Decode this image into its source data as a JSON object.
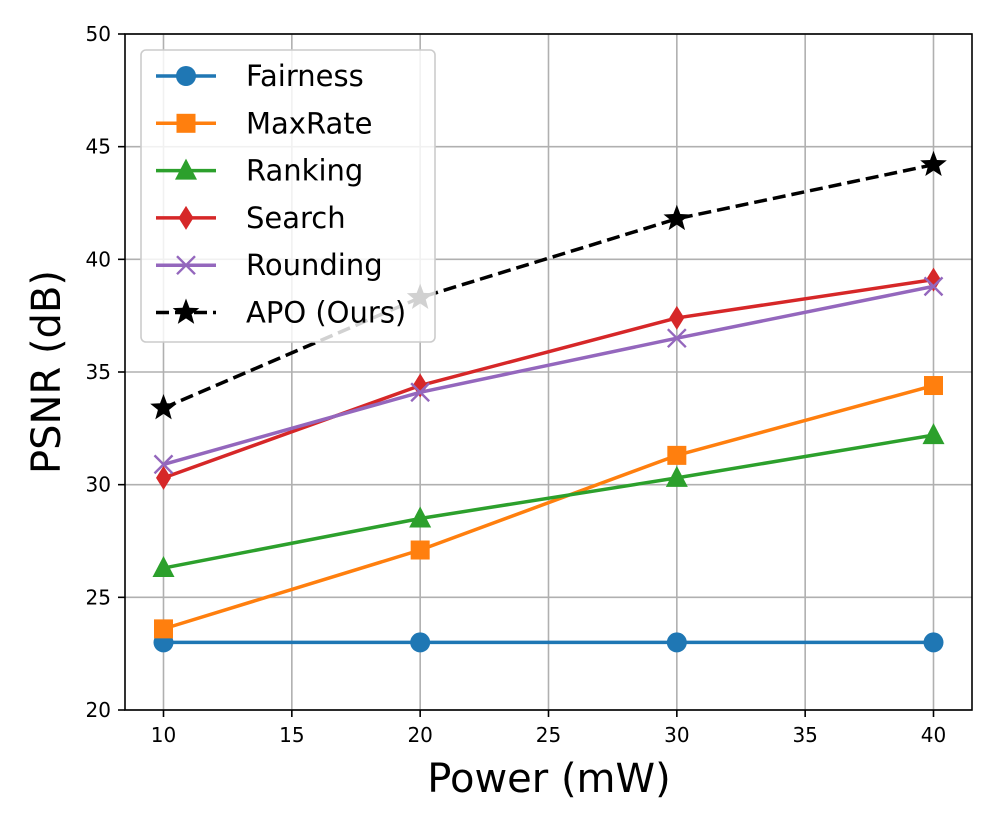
{
  "chart_data": {
    "type": "line",
    "title": "",
    "xlabel": "Power (mW)",
    "ylabel": "PSNR (dB)",
    "x": [
      10,
      20,
      30,
      40
    ],
    "xlim": [
      8.5,
      41.5
    ],
    "ylim": [
      20,
      50
    ],
    "xticks": [
      "10",
      "15",
      "20",
      "25",
      "30",
      "35",
      "40"
    ],
    "yticks": [
      "20",
      "25",
      "30",
      "35",
      "40",
      "45",
      "50"
    ],
    "grid": true,
    "legend_position": "top-left",
    "series": [
      {
        "name": "Fairness",
        "values": [
          23.0,
          23.0,
          23.0,
          23.0
        ],
        "color": "#1f77b4",
        "marker": "circle",
        "dashed": false
      },
      {
        "name": "MaxRate",
        "values": [
          23.6,
          27.1,
          31.3,
          34.4
        ],
        "color": "#ff7f0e",
        "marker": "square",
        "dashed": false
      },
      {
        "name": "Ranking",
        "values": [
          26.3,
          28.5,
          30.3,
          32.2
        ],
        "color": "#2ca02c",
        "marker": "triangle",
        "dashed": false
      },
      {
        "name": "Search",
        "values": [
          30.3,
          34.4,
          37.4,
          39.1
        ],
        "color": "#d62728",
        "marker": "diamond",
        "dashed": false
      },
      {
        "name": "Rounding",
        "values": [
          30.9,
          34.1,
          36.5,
          38.8
        ],
        "color": "#9467bd",
        "marker": "x",
        "dashed": false
      },
      {
        "name": "APO (Ours)",
        "values": [
          33.4,
          38.3,
          41.8,
          44.2
        ],
        "color": "#000000",
        "marker": "star",
        "dashed": true
      }
    ]
  }
}
